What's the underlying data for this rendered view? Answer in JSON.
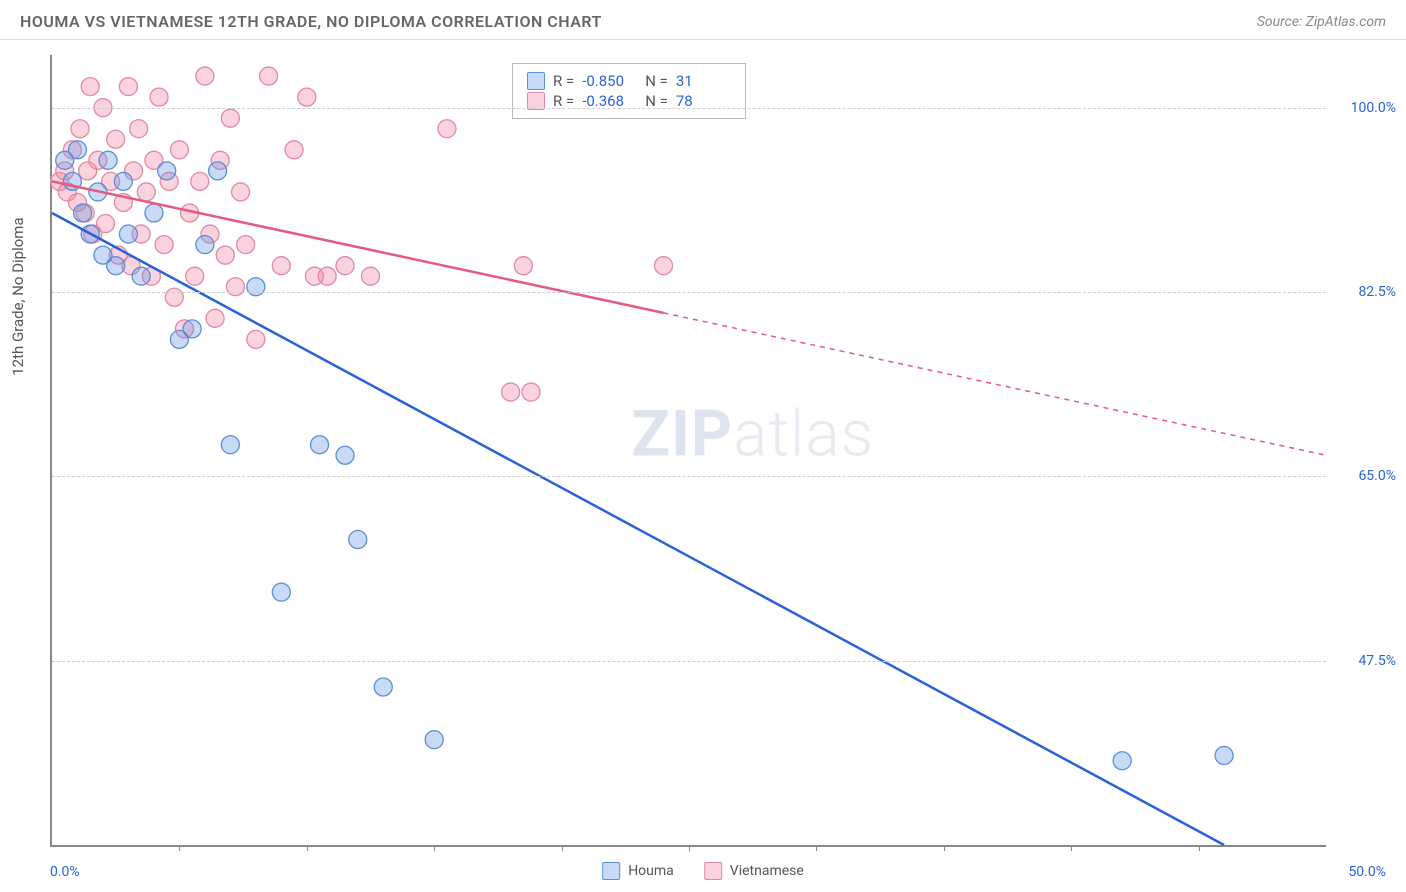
{
  "header": {
    "title": "HOUMA VS VIETNAMESE 12TH GRADE, NO DIPLOMA CORRELATION CHART",
    "source": "Source: ZipAtlas.com"
  },
  "ylabel": "12th Grade, No Diploma",
  "watermark_bold": "ZIP",
  "watermark_rest": "atlas",
  "xaxis": {
    "min_label": "0.0%",
    "max_label": "50.0%",
    "min": 0,
    "max": 50,
    "ticks_pct": [
      10,
      20,
      30,
      40,
      50,
      60,
      70,
      80,
      90
    ]
  },
  "yaxis": {
    "min": 30,
    "max": 105,
    "gridlines": [
      {
        "value": 47.5,
        "label": "47.5%"
      },
      {
        "value": 65.0,
        "label": "65.0%"
      },
      {
        "value": 82.5,
        "label": "82.5%"
      },
      {
        "value": 100.0,
        "label": "100.0%"
      }
    ]
  },
  "series": {
    "houma": {
      "label": "Houma",
      "color_fill": "rgba(100,150,230,0.35)",
      "color_stroke": "#5b8fd6",
      "line_color": "#2962d9",
      "R": "-0.850",
      "N": "31",
      "points": [
        [
          0.5,
          95
        ],
        [
          0.8,
          93
        ],
        [
          1.0,
          96
        ],
        [
          1.2,
          90
        ],
        [
          1.5,
          88
        ],
        [
          1.8,
          92
        ],
        [
          2.0,
          86
        ],
        [
          2.2,
          95
        ],
        [
          2.5,
          85
        ],
        [
          2.8,
          93
        ],
        [
          3.0,
          88
        ],
        [
          3.5,
          84
        ],
        [
          4.0,
          90
        ],
        [
          4.5,
          94
        ],
        [
          5.0,
          78
        ],
        [
          5.5,
          79
        ],
        [
          6.0,
          87
        ],
        [
          6.5,
          94
        ],
        [
          7.0,
          68
        ],
        [
          8.0,
          83
        ],
        [
          9.0,
          54
        ],
        [
          10.5,
          68
        ],
        [
          11.5,
          67
        ],
        [
          12.0,
          59
        ],
        [
          13.0,
          45
        ],
        [
          15.0,
          40
        ],
        [
          42.0,
          38
        ],
        [
          46.0,
          38.5
        ]
      ],
      "trend_x1": 0,
      "trend_y1": 90,
      "trend_x2": 46,
      "trend_y2": 30,
      "solid_until_x": 46
    },
    "vietnamese": {
      "label": "Vietnamese",
      "color_fill": "rgba(240,130,160,0.35)",
      "color_stroke": "#e089a3",
      "line_color": "#e65a7d",
      "R": "-0.368",
      "N": "78",
      "points": [
        [
          0.3,
          93
        ],
        [
          0.5,
          94
        ],
        [
          0.6,
          92
        ],
        [
          0.8,
          96
        ],
        [
          1.0,
          91
        ],
        [
          1.1,
          98
        ],
        [
          1.3,
          90
        ],
        [
          1.4,
          94
        ],
        [
          1.5,
          102
        ],
        [
          1.6,
          88
        ],
        [
          1.8,
          95
        ],
        [
          2.0,
          100
        ],
        [
          2.1,
          89
        ],
        [
          2.3,
          93
        ],
        [
          2.5,
          97
        ],
        [
          2.6,
          86
        ],
        [
          2.8,
          91
        ],
        [
          3.0,
          102
        ],
        [
          3.1,
          85
        ],
        [
          3.2,
          94
        ],
        [
          3.4,
          98
        ],
        [
          3.5,
          88
        ],
        [
          3.7,
          92
        ],
        [
          3.9,
          84
        ],
        [
          4.0,
          95
        ],
        [
          4.2,
          101
        ],
        [
          4.4,
          87
        ],
        [
          4.6,
          93
        ],
        [
          4.8,
          82
        ],
        [
          5.0,
          96
        ],
        [
          5.2,
          79
        ],
        [
          5.4,
          90
        ],
        [
          5.6,
          84
        ],
        [
          5.8,
          93
        ],
        [
          6.0,
          103
        ],
        [
          6.2,
          88
        ],
        [
          6.4,
          80
        ],
        [
          6.6,
          95
        ],
        [
          6.8,
          86
        ],
        [
          7.0,
          99
        ],
        [
          7.2,
          83
        ],
        [
          7.4,
          92
        ],
        [
          7.6,
          87
        ],
        [
          8.0,
          78
        ],
        [
          8.5,
          103
        ],
        [
          9.0,
          85
        ],
        [
          9.5,
          96
        ],
        [
          10.0,
          101
        ],
        [
          10.3,
          84
        ],
        [
          10.8,
          84
        ],
        [
          11.5,
          85
        ],
        [
          12.5,
          84
        ],
        [
          15.5,
          98
        ],
        [
          18.0,
          73
        ],
        [
          18.8,
          73
        ],
        [
          24.0,
          85
        ],
        [
          18.5,
          85
        ]
      ],
      "trend_x1": 0,
      "trend_y1": 93,
      "trend_x2": 50,
      "trend_y2": 67,
      "solid_until_x": 24
    }
  },
  "stats_label_R": "R =",
  "stats_label_N": "N =",
  "marker_radius": 9,
  "marker_stroke_width": 1.3,
  "line_width": 2.5
}
